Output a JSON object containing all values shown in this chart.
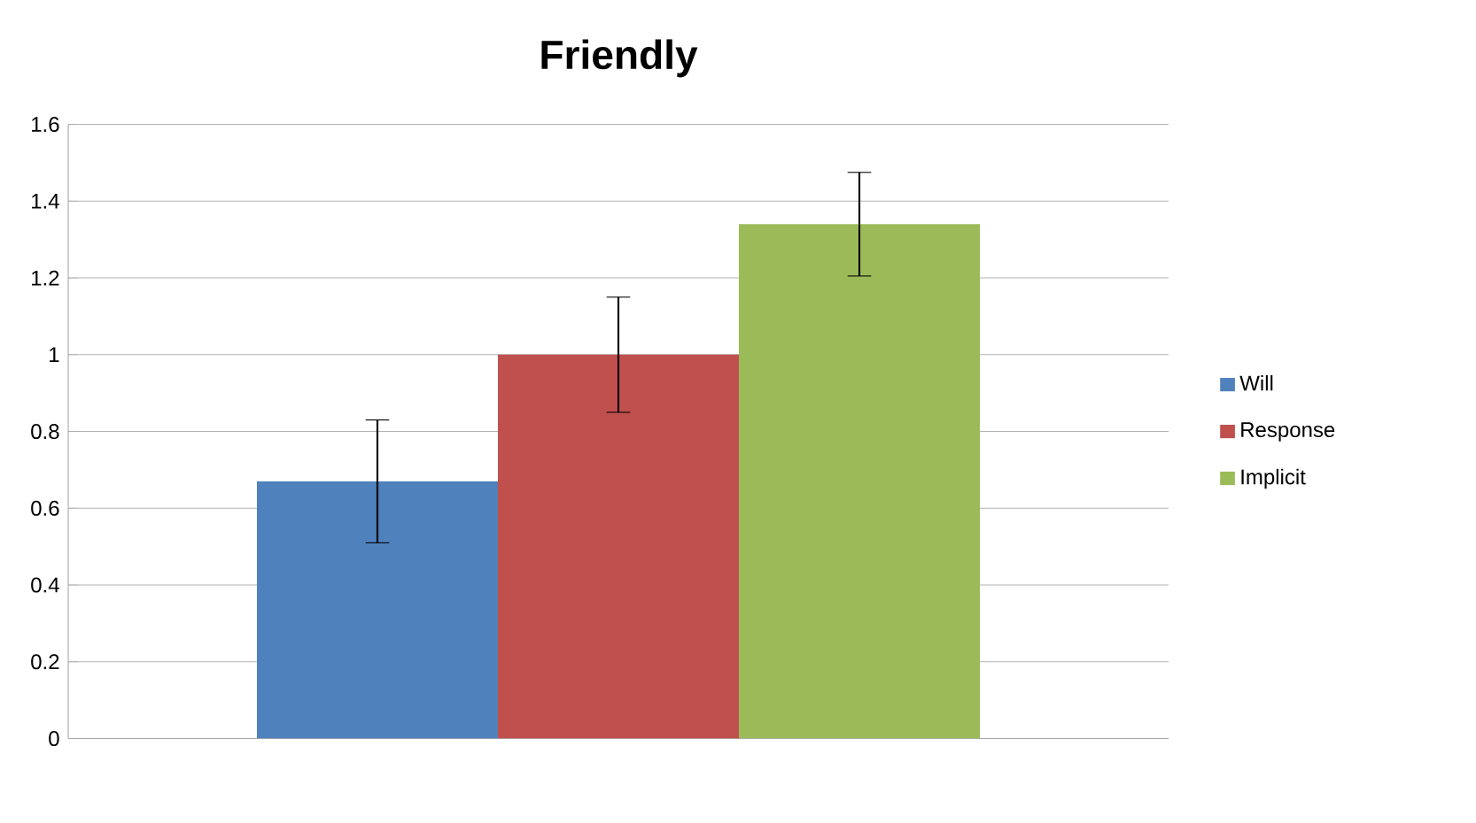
{
  "chart_data": {
    "type": "bar",
    "title": "Friendly",
    "categories": [
      null
    ],
    "series": [
      {
        "name": "Will",
        "color": "#4f81bd",
        "values": [
          0.67
        ],
        "errors": [
          0.16
        ]
      },
      {
        "name": "Response",
        "color": "#c0504d",
        "values": [
          1.0
        ],
        "errors": [
          0.15
        ]
      },
      {
        "name": "Implicit",
        "color": "#9bbb59",
        "values": [
          1.34
        ],
        "errors": [
          0.135
        ]
      }
    ],
    "ylim": [
      0,
      1.6
    ],
    "yticks": [
      0,
      0.2,
      0.4,
      0.6,
      0.8,
      1,
      1.2,
      1.4,
      1.6
    ],
    "grid": "y",
    "legend": "right"
  }
}
